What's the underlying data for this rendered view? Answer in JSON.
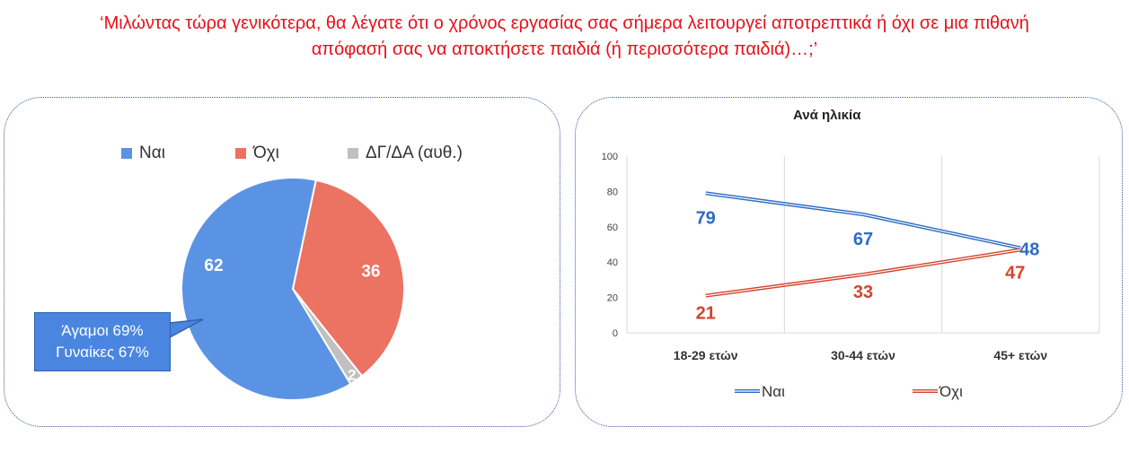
{
  "question": {
    "line1": "‘Μιλώντας τώρα γενικότερα, θα λέγατε ότι ο χρόνος εργασίας σας σήμερα λειτουργεί αποτρεπτικά ή όχι σε μια πιθανή",
    "line2": "απόφασή σας να αποκτήσετε παιδιά (ή περισσότερα παιδιά)…;’"
  },
  "colors": {
    "yes": "#5b93e4",
    "no": "#ec7262",
    "dk": "#c0c0c0",
    "yes_line": "#2e6bc4",
    "no_line": "#d5432f"
  },
  "pie_legend": [
    {
      "label": "Ναι",
      "color": "#5b93e4"
    },
    {
      "label": "Όχι",
      "color": "#ec7262"
    },
    {
      "label": "ΔΓ/ΔΑ (αυθ.)",
      "color": "#c0c0c0"
    }
  ],
  "callout": {
    "line1": "Άγαμοι 69%",
    "line2": "Γυναίκες 67%"
  },
  "line_legend": {
    "yes": "Ναι",
    "no": "Όχι"
  },
  "chart_data": [
    {
      "type": "pie",
      "categories": [
        "Ναι",
        "Όχι",
        "ΔΓ/ΔΑ (αυθ.)"
      ],
      "values": [
        62,
        36,
        2
      ],
      "data_labels": [
        "62",
        "36",
        "2"
      ]
    },
    {
      "type": "line",
      "title": "Ανά ηλικία",
      "categories": [
        "18-29 ετών",
        "30-44 ετών",
        "45+ ετών"
      ],
      "series": [
        {
          "name": "Ναι",
          "values": [
            79,
            67,
            48
          ]
        },
        {
          "name": "Όχι",
          "values": [
            21,
            33,
            47
          ]
        }
      ],
      "ylim": [
        0,
        100
      ],
      "yticks": [
        "0",
        "20",
        "40",
        "60",
        "80",
        "100"
      ],
      "grid": "vertical",
      "legend": "bottom"
    }
  ]
}
